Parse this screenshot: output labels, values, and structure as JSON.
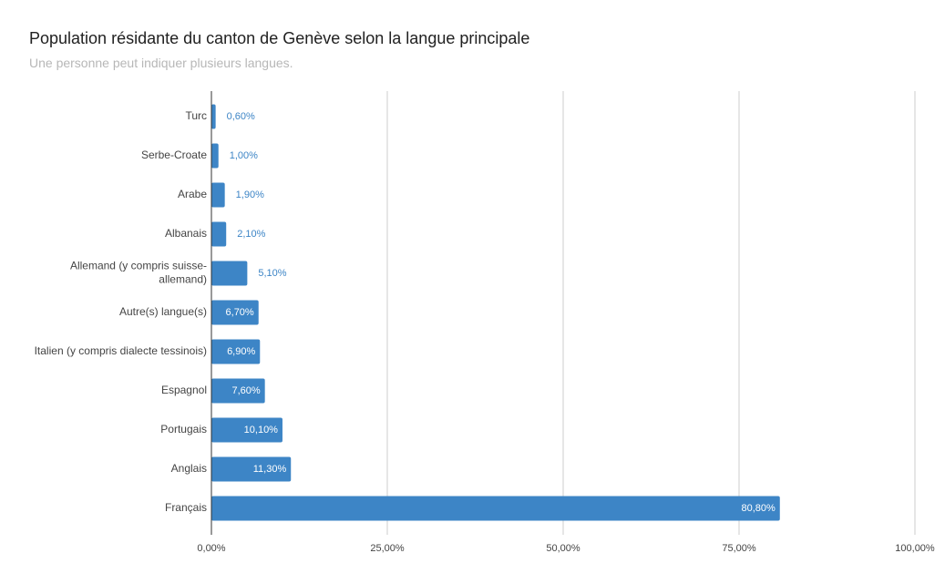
{
  "header": {
    "title": "Population résidante du canton de Genève selon la langue principale",
    "subtitle": "Une personne peut indiquer plusieurs langues."
  },
  "chart_data": {
    "type": "bar",
    "orientation": "horizontal",
    "title": "Population résidante du canton de Genève selon la langue principale",
    "subtitle": "Une personne peut indiquer plusieurs langues.",
    "categories": [
      "Turc",
      "Serbe-Croate",
      "Arabe",
      "Albanais",
      "Allemand (y compris suisse-allemand)",
      "Autre(s) langue(s)",
      "Italien (y compris dialecte tessinois)",
      "Espagnol",
      "Portugais",
      "Anglais",
      "Français"
    ],
    "category_label_lines": [
      [
        "Turc"
      ],
      [
        "Serbe-Croate"
      ],
      [
        "Arabe"
      ],
      [
        "Albanais"
      ],
      [
        "Allemand (y compris suisse-",
        "allemand)"
      ],
      [
        "Autre(s) langue(s)"
      ],
      [
        "Italien (y compris dialecte tessinois)"
      ],
      [
        "Espagnol"
      ],
      [
        "Portugais"
      ],
      [
        "Anglais"
      ],
      [
        "Français"
      ]
    ],
    "values": [
      0.6,
      1.0,
      1.9,
      2.1,
      5.1,
      6.7,
      6.9,
      7.6,
      10.1,
      11.3,
      80.8
    ],
    "value_labels": [
      "0,60%",
      "1,00%",
      "1,90%",
      "2,10%",
      "5,10%",
      "6,70%",
      "6,90%",
      "7,60%",
      "10,10%",
      "11,30%",
      "80,80%"
    ],
    "xlim": [
      0,
      100
    ],
    "xticks": [
      0,
      25,
      50,
      75,
      100
    ],
    "xtick_labels": [
      "0,00%",
      "25,00%",
      "50,00%",
      "75,00%",
      "100,00%"
    ],
    "xlabel": "",
    "ylabel": "",
    "grid": true,
    "legend": false,
    "colors": {
      "bar": "#3d85c6",
      "label_inside": "#ffffff",
      "label_outside": "#3d85c6",
      "grid": "#cccccc",
      "axis": "#333333"
    }
  }
}
